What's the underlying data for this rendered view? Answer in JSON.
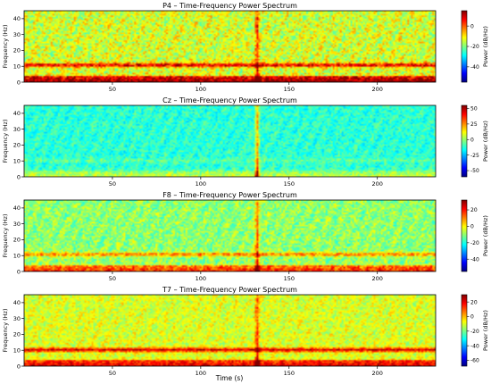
{
  "figure": {
    "xlabel": "Time (s)"
  },
  "chart_data": [
    {
      "type": "heatmap",
      "title": "P4 – Time-Frequency Power Spectrum",
      "xlabel": "",
      "ylabel": "Frequency (Hz)",
      "xlim": [
        0,
        233
      ],
      "ylim": [
        0,
        45
      ],
      "xticks": [
        50,
        100,
        150,
        200
      ],
      "yticks": [
        0,
        10,
        20,
        30,
        40
      ],
      "colorbar": {
        "label": "Power (dB/Hz)",
        "ticks": [
          0,
          -20,
          -40
        ],
        "range": [
          -55,
          15
        ],
        "colormap": "jet"
      },
      "features": {
        "background_db": -14,
        "alpha_band": {
          "freq_hz": 10.5,
          "power_db": 8
        },
        "low_freq_db": 14,
        "artifact": {
          "time_s": 132,
          "power_db": 18
        }
      }
    },
    {
      "type": "heatmap",
      "title": "Cz – Time-Frequency Power Spectrum",
      "xlabel": "",
      "ylabel": "Frequency (Hz)",
      "xlim": [
        0,
        233
      ],
      "ylim": [
        0,
        45
      ],
      "xticks": [
        50,
        100,
        150,
        200
      ],
      "yticks": [
        0,
        10,
        20,
        30,
        40
      ],
      "colorbar": {
        "label": "Power (dB/Hz)",
        "ticks": [
          50,
          25,
          0,
          -25,
          -50
        ],
        "range": [
          -60,
          55
        ],
        "colormap": "jet"
      },
      "features": {
        "background_db": -12,
        "alpha_band": {
          "freq_hz": 10,
          "power_db": -6
        },
        "low_freq_db": 6,
        "artifact": {
          "time_s": 132,
          "power_db": 48
        }
      }
    },
    {
      "type": "heatmap",
      "title": "F8 – Time-Frequency Power Spectrum",
      "xlabel": "",
      "ylabel": "Frequency (Hz)",
      "xlim": [
        0,
        233
      ],
      "ylim": [
        0,
        45
      ],
      "xticks": [
        50,
        100,
        150,
        200
      ],
      "yticks": [
        0,
        10,
        20,
        30,
        40
      ],
      "colorbar": {
        "label": "Power (dB/Hz)",
        "ticks": [
          20,
          0,
          -20,
          -40
        ],
        "range": [
          -55,
          32
        ],
        "colormap": "jet"
      },
      "features": {
        "background_db": -10,
        "alpha_band": {
          "freq_hz": 10.5,
          "power_db": 10
        },
        "low_freq_db": 18,
        "artifact": {
          "time_s": 132,
          "power_db": 30
        }
      }
    },
    {
      "type": "heatmap",
      "title": "T7 – Time-Frequency Power Spectrum",
      "xlabel": "Time (s)",
      "ylabel": "Frequency (Hz)",
      "xlim": [
        0,
        233
      ],
      "ylim": [
        0,
        45
      ],
      "xticks": [
        50,
        100,
        150,
        200
      ],
      "yticks": [
        0,
        10,
        20,
        30,
        40
      ],
      "colorbar": {
        "label": "Power (dB/Hz)",
        "ticks": [
          20,
          0,
          -20,
          -40,
          -60
        ],
        "range": [
          -68,
          30
        ],
        "colormap": "jet"
      },
      "features": {
        "background_db": -10,
        "alpha_band": {
          "freq_hz": 10,
          "power_db": 22
        },
        "low_freq_db": 20,
        "artifact": {
          "time_s": 132,
          "power_db": 28
        }
      }
    }
  ]
}
